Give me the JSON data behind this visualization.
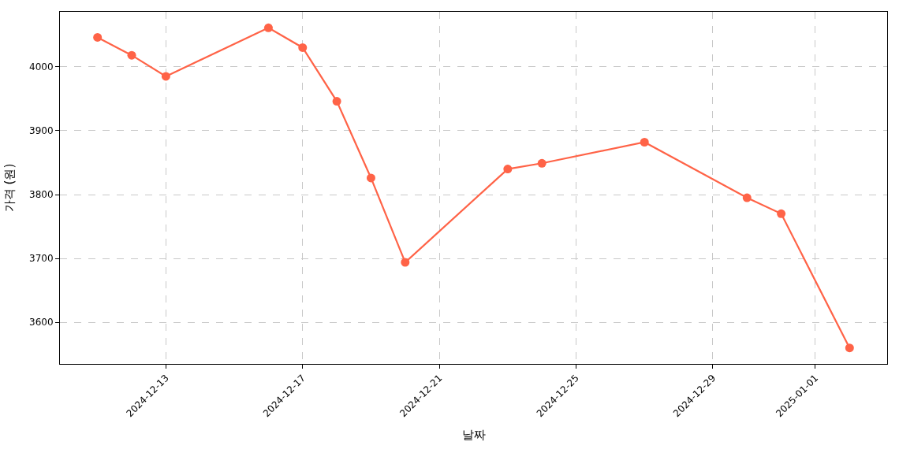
{
  "chart_data": {
    "type": "line",
    "xlabel": "날짜",
    "ylabel": "가격 (원)",
    "x": [
      "2024-12-11",
      "2024-12-12",
      "2024-12-13",
      "2024-12-16",
      "2024-12-17",
      "2024-12-18",
      "2024-12-19",
      "2024-12-20",
      "2024-12-23",
      "2024-12-24",
      "2024-12-27",
      "2024-12-30",
      "2024-12-31",
      "2025-01-02"
    ],
    "series": [
      {
        "color": "#ff6347",
        "values": [
          4046,
          4018,
          3985,
          4061,
          4030,
          3946,
          3826,
          3694,
          3840,
          3849,
          3882,
          3795,
          3770,
          3560
        ]
      }
    ],
    "xlim": [
      "2024-12-09T21:36",
      "2025-01-03T02:24"
    ],
    "xticks": [
      {
        "value": "2024-12-13",
        "label": "2024-12-13"
      },
      {
        "value": "2024-12-17",
        "label": "2024-12-17"
      },
      {
        "value": "2024-12-21",
        "label": "2024-12-21"
      },
      {
        "value": "2024-12-25",
        "label": "2024-12-25"
      },
      {
        "value": "2024-12-29",
        "label": "2024-12-29"
      },
      {
        "value": "2025-01-01",
        "label": "2025-01-01"
      }
    ],
    "ylim": [
      3535,
      4086
    ],
    "yticks": [
      3600,
      3700,
      3800,
      3900,
      4000
    ],
    "grid": true,
    "marker": "circle",
    "line_style": "solid"
  }
}
